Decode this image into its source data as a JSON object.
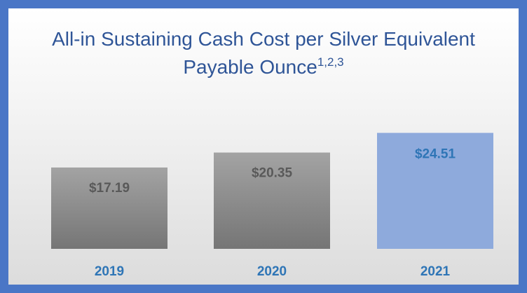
{
  "chart_data": {
    "type": "bar",
    "title": "All-in Sustaining Cash Cost per Silver Equivalent Payable Ounce",
    "title_superscript": "1,2,3",
    "categories": [
      "2019",
      "2020",
      "2021"
    ],
    "values": [
      17.19,
      20.35,
      24.51
    ],
    "value_labels": [
      "$17.19",
      "$20.35",
      "$24.51"
    ],
    "colors": [
      "#8f8f8f",
      "#8f8f8f",
      "#8eaadc"
    ]
  }
}
